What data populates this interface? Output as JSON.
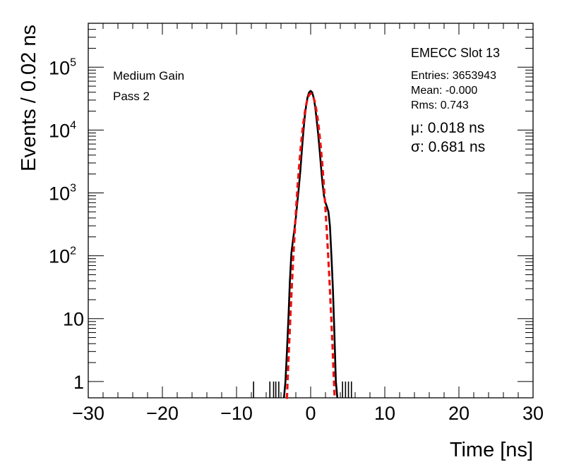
{
  "chart_data": {
    "type": "histogram",
    "xlabel": "Time [ns]",
    "ylabel": "Events / 0.02 ns",
    "xlim": [
      -30,
      30
    ],
    "ylim": [
      0.55,
      500000
    ],
    "y_scale": "log",
    "x_ticks": [
      {
        "value": -30,
        "label": "−30"
      },
      {
        "value": -20,
        "label": "−20"
      },
      {
        "value": -10,
        "label": "−10"
      },
      {
        "value": 0,
        "label": "0"
      },
      {
        "value": 10,
        "label": "10"
      },
      {
        "value": 20,
        "label": "20"
      },
      {
        "value": 30,
        "label": "30"
      }
    ],
    "y_ticks": [
      {
        "value": 1,
        "label": "1"
      },
      {
        "value": 10,
        "label": "10"
      },
      {
        "value": 100,
        "label": "10",
        "exp": "2"
      },
      {
        "value": 1000,
        "label": "10",
        "exp": "3"
      },
      {
        "value": 10000,
        "label": "10",
        "exp": "4"
      },
      {
        "value": 100000,
        "label": "10",
        "exp": "5"
      }
    ],
    "labels": {
      "gain": "Medium Gain",
      "pass": "Pass 2",
      "slot": "EMECC Slot 13"
    },
    "stats": {
      "entries": "Entries: 3653943",
      "mean": "Mean: -0.000",
      "rms": "Rms: 0.743"
    },
    "fit": {
      "mu_text": "μ: 0.018 ns",
      "sigma_text": "σ: 0.681 ns",
      "mu": 0.018,
      "sigma": 0.681,
      "peak": 38000,
      "range": [
        -3.3,
        3.3
      ]
    },
    "series": [
      {
        "x": [
          -3.6,
          -3.4,
          -3.2,
          -3.0,
          -2.8,
          -2.6,
          -2.4,
          -2.2,
          -2.0,
          -1.8,
          -1.6,
          -1.4,
          -1.2,
          -1.0,
          -0.8,
          -0.6,
          -0.4,
          -0.2,
          0.0,
          0.2,
          0.4,
          0.6,
          0.8,
          1.0,
          1.2,
          1.4,
          1.6,
          1.8,
          2.0,
          2.2,
          2.4,
          2.6,
          2.8,
          3.0,
          3.2,
          3.4,
          3.6
        ],
        "y": [
          0.55,
          1,
          3,
          10,
          40,
          110,
          170,
          260,
          400,
          700,
          1200,
          2200,
          4500,
          9000,
          16000,
          25000,
          34000,
          40000,
          42000,
          40000,
          33000,
          24000,
          15000,
          9000,
          5000,
          2600,
          1400,
          900,
          700,
          600,
          500,
          300,
          100,
          30,
          6,
          1,
          0.55
        ]
      }
    ],
    "outliers": [
      -7.7,
      -5.5,
      -5.0,
      -4.7,
      -4.3,
      4.3,
      4.7,
      5.1,
      5.5
    ]
  }
}
